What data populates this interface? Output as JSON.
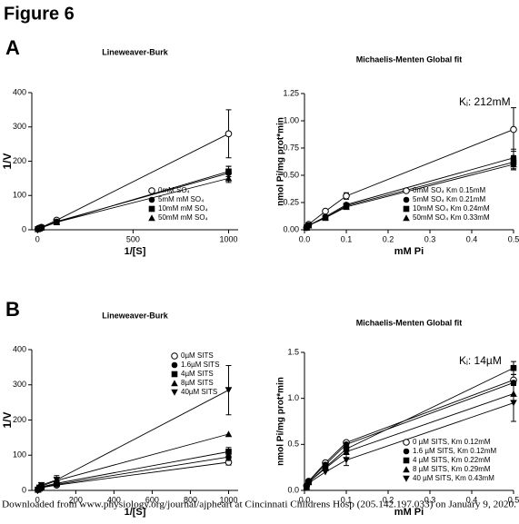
{
  "figure_title": "Figure 6",
  "panel_labels": [
    "A",
    "B"
  ],
  "footer": "Downloaded from www.physiology.org/journal/ajpheart at Cincinnati Childrens Hosp (205.142.197.033) on January 9, 2020.",
  "chart_data": [
    {
      "type": "scatter",
      "title": "Lineweaver-Burk",
      "xlabel": "1/[S]",
      "ylabel": "1/V",
      "x": [
        2,
        10,
        20,
        100,
        1000
      ],
      "xlim": [
        -30,
        1050
      ],
      "xticks": [
        0,
        500,
        1000
      ],
      "ylim": [
        0,
        400
      ],
      "yticks": [
        0,
        100,
        200,
        300,
        400
      ],
      "legend": "lower right",
      "series": [
        {
          "name": "0mM SO₄",
          "color": "#000000",
          "marker": "open-circle",
          "values": [
            2,
            5,
            7,
            28,
            280
          ],
          "errors": [
            null,
            null,
            null,
            4,
            70
          ]
        },
        {
          "name": "5mM mM SO₄",
          "color": "#000000",
          "marker": "circle",
          "values": [
            2,
            4,
            6,
            24,
            165
          ],
          "errors": [
            null,
            null,
            null,
            null,
            20
          ]
        },
        {
          "name": "10mM mM SO₄",
          "color": "#000000",
          "marker": "square",
          "values": [
            2,
            4,
            6,
            22,
            170
          ],
          "errors": [
            null,
            null,
            null,
            null,
            15
          ]
        },
        {
          "name": "50mM mM SO₄",
          "color": "#000000",
          "marker": "triangle",
          "values": [
            2,
            4,
            6,
            22,
            150
          ],
          "errors": [
            null,
            null,
            null,
            null,
            12
          ]
        }
      ]
    },
    {
      "type": "scatter",
      "title": "Michaelis-Menten Global fit",
      "xlabel": "mM Pi",
      "ylabel": "nmol Pi/mg prot*min",
      "annotation": "Kᵢ: 212mM",
      "x": [
        0.005,
        0.01,
        0.05,
        0.1,
        0.5
      ],
      "xlim": [
        0,
        0.5
      ],
      "xticks": [
        {
          "value": 0,
          "label": "0.0"
        },
        0.1,
        0.2,
        0.3,
        0.4,
        0.5
      ],
      "ylim": [
        0,
        1.25
      ],
      "yticks": [
        {
          "value": 0,
          "label": "0.00"
        },
        0.25,
        {
          "value": 0.5,
          "label": "0.50"
        },
        0.75,
        {
          "value": 1,
          "label": "1.00"
        },
        1.25
      ],
      "legend": "lower right",
      "series": [
        {
          "name": "0mM SO₄ Km 0.15mM",
          "color": "#000000",
          "marker": "open-circle",
          "values": [
            0.02,
            0.05,
            0.17,
            0.31,
            0.92
          ],
          "errors": [
            null,
            null,
            null,
            0.03,
            0.2
          ]
        },
        {
          "name": "5mM SO₄ Km 0.21mM",
          "color": "#000000",
          "marker": "circle",
          "values": [
            0.02,
            0.04,
            0.12,
            0.23,
            0.66
          ],
          "errors": [
            null,
            null,
            null,
            null,
            0.08
          ]
        },
        {
          "name": "10mM SO₄ Km 0.24mM",
          "color": "#000000",
          "marker": "square",
          "values": [
            0.02,
            0.04,
            0.11,
            0.22,
            0.62
          ],
          "errors": [
            null,
            null,
            null,
            null,
            0.06
          ]
        },
        {
          "name": "50mM SO₄ Km 0.33mM",
          "color": "#000000",
          "marker": "triangle",
          "values": [
            0.02,
            0.04,
            0.11,
            0.21,
            0.6
          ],
          "errors": [
            null,
            null,
            null,
            null,
            0.05
          ]
        }
      ]
    },
    {
      "type": "scatter",
      "title": "Lineweaver-Burk",
      "xlabel": "1/[S]",
      "ylabel": "1/V",
      "x": [
        2,
        10,
        20,
        100,
        1000
      ],
      "xlim": [
        -30,
        1050
      ],
      "xticks": [
        0,
        200,
        400,
        600,
        800,
        1000
      ],
      "ylim": [
        0,
        400
      ],
      "yticks": [
        0,
        100,
        200,
        300,
        400
      ],
      "legend": "upper right",
      "series": [
        {
          "name": "0µM SITS",
          "color": "#000000",
          "marker": "open-circle",
          "values": [
            2,
            5,
            8,
            15,
            80
          ],
          "errors": [
            null,
            null,
            null,
            null,
            8
          ]
        },
        {
          "name": "1.6µM SITS",
          "color": "#000000",
          "marker": "circle",
          "values": [
            2,
            5,
            9,
            17,
            95
          ],
          "errors": [
            null,
            null,
            null,
            null,
            10
          ]
        },
        {
          "name": "4µM SITS",
          "color": "#000000",
          "marker": "square",
          "values": [
            2,
            5,
            10,
            20,
            110
          ],
          "errors": [
            null,
            null,
            null,
            null,
            12
          ]
        },
        {
          "name": "8µM SITS",
          "color": "#000000",
          "marker": "triangle",
          "values": [
            2,
            6,
            12,
            28,
            160
          ],
          "errors": [
            null,
            null,
            null,
            null,
            null
          ]
        },
        {
          "name": "40µM SITS",
          "color": "#000000",
          "marker": "down-triangle",
          "values": [
            2,
            8,
            15,
            30,
            285
          ],
          "errors": [
            null,
            null,
            null,
            12,
            70
          ]
        }
      ]
    },
    {
      "type": "scatter",
      "title": "Michaelis-Menten Global fit",
      "xlabel": "mM Pi",
      "ylabel": "nmol Pi/mg prot*min",
      "annotation": "Kᵢ: 14µM",
      "x": [
        0.005,
        0.01,
        0.05,
        0.1,
        0.5
      ],
      "xlim": [
        0,
        0.5
      ],
      "xticks": [
        {
          "value": 0,
          "label": "0.0"
        },
        0.1,
        0.2,
        0.3,
        0.4,
        0.5
      ],
      "ylim": [
        0,
        1.5
      ],
      "yticks": [
        {
          "value": 0,
          "label": "0.0"
        },
        0.5,
        {
          "value": 1,
          "label": "1.0"
        },
        1.5
      ],
      "legend": "lower right",
      "series": [
        {
          "name": "0 µM SITS, Km 0.12mM",
          "color": "#000000",
          "marker": "open-circle",
          "values": [
            0.05,
            0.1,
            0.3,
            0.52,
            1.2
          ],
          "errors": [
            null,
            null,
            null,
            null,
            0.06
          ]
        },
        {
          "name": "1.6 µM SITS, Km 0.12mM",
          "color": "#000000",
          "marker": "circle",
          "values": [
            0.05,
            0.1,
            0.28,
            0.5,
            1.17
          ],
          "errors": [
            null,
            null,
            null,
            null,
            null
          ]
        },
        {
          "name": "4 µM SITS, Km 0.22mM",
          "color": "#000000",
          "marker": "square",
          "values": [
            0.04,
            0.09,
            0.25,
            0.45,
            1.33
          ],
          "errors": [
            null,
            null,
            null,
            null,
            0.07
          ]
        },
        {
          "name": "8 µM SITS, Km 0.29mM",
          "color": "#000000",
          "marker": "triangle",
          "values": [
            0.04,
            0.09,
            0.24,
            0.42,
            1.05
          ],
          "errors": [
            null,
            null,
            null,
            null,
            null
          ]
        },
        {
          "name": "40 µM SITS, Km 0.43mM",
          "color": "#000000",
          "marker": "down-triangle",
          "values": [
            0.03,
            0.08,
            0.2,
            0.33,
            0.95
          ],
          "errors": [
            null,
            null,
            null,
            0.06,
            0.2
          ]
        }
      ]
    }
  ]
}
